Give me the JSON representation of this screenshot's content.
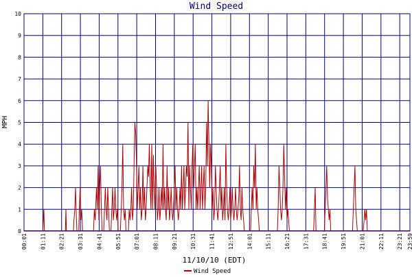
{
  "chart_data": {
    "type": "line",
    "title": "Wind Speed",
    "xlabel": "11/10/10 (EDT)",
    "ylabel": "MPH",
    "ylim": [
      0,
      10
    ],
    "yticks": [
      "0",
      "1",
      "2",
      "3",
      "4",
      "5",
      "6",
      "7",
      "8",
      "9",
      "10"
    ],
    "xticks": [
      "00:01",
      "01:11",
      "02:21",
      "03:31",
      "04:41",
      "05:51",
      "07:01",
      "08:11",
      "09:21",
      "10:31",
      "11:41",
      "12:51",
      "14:01",
      "15:11",
      "16:21",
      "17:31",
      "18:41",
      "19:51",
      "21:01",
      "22:11",
      "23:21",
      "23:59"
    ],
    "grid": true,
    "legend_position": "bottom-center",
    "series": [
      {
        "name": "Wind Speed",
        "color": "#b00000",
        "points": [
          [
            "01:11",
            0
          ],
          [
            "01:13",
            0.5
          ],
          [
            "01:15",
            1
          ],
          [
            "01:17",
            0
          ],
          [
            "02:35",
            0
          ],
          [
            "02:37",
            1
          ],
          [
            "02:39",
            0
          ],
          [
            "03:05",
            0
          ],
          [
            "03:07",
            0.5
          ],
          [
            "03:10",
            1
          ],
          [
            "03:13",
            2
          ],
          [
            "03:15",
            1
          ],
          [
            "03:18",
            0
          ],
          [
            "03:25",
            0
          ],
          [
            "03:27",
            1
          ],
          [
            "03:30",
            2
          ],
          [
            "03:33",
            0.5
          ],
          [
            "03:36",
            1
          ],
          [
            "03:39",
            0
          ],
          [
            "04:20",
            0
          ],
          [
            "04:23",
            1
          ],
          [
            "04:26",
            0.5
          ],
          [
            "04:28",
            1
          ],
          [
            "04:31",
            2
          ],
          [
            "04:34",
            1
          ],
          [
            "04:37",
            3
          ],
          [
            "04:40",
            0.5
          ],
          [
            "04:43",
            2
          ],
          [
            "04:46",
            3
          ],
          [
            "04:49",
            1
          ],
          [
            "04:52",
            0
          ],
          [
            "04:58",
            0
          ],
          [
            "05:01",
            1
          ],
          [
            "05:04",
            2
          ],
          [
            "05:07",
            1
          ],
          [
            "05:10",
            0.5
          ],
          [
            "05:13",
            2
          ],
          [
            "05:16",
            1
          ],
          [
            "05:19",
            0
          ],
          [
            "05:25",
            0
          ],
          [
            "05:28",
            1
          ],
          [
            "05:31",
            2
          ],
          [
            "05:34",
            0.5
          ],
          [
            "05:37",
            1
          ],
          [
            "05:40",
            2
          ],
          [
            "05:43",
            1
          ],
          [
            "05:46",
            0.5
          ],
          [
            "05:49",
            1
          ],
          [
            "05:52",
            0
          ],
          [
            "06:00",
            0
          ],
          [
            "06:03",
            1
          ],
          [
            "06:06",
            2
          ],
          [
            "06:09",
            4
          ],
          [
            "06:12",
            1
          ],
          [
            "06:15",
            0.5
          ],
          [
            "06:18",
            1
          ],
          [
            "06:21",
            0
          ],
          [
            "06:30",
            0
          ],
          [
            "06:33",
            1
          ],
          [
            "06:36",
            0.5
          ],
          [
            "06:39",
            1
          ],
          [
            "06:42",
            2
          ],
          [
            "06:45",
            0.5
          ],
          [
            "06:48",
            1
          ],
          [
            "06:51",
            3
          ],
          [
            "06:54",
            5
          ],
          [
            "06:57",
            4.5
          ],
          [
            "07:00",
            3
          ],
          [
            "07:03",
            1
          ],
          [
            "07:06",
            2
          ],
          [
            "07:09",
            3
          ],
          [
            "07:12",
            1
          ],
          [
            "07:15",
            2
          ],
          [
            "07:18",
            0.5
          ],
          [
            "07:21",
            1
          ],
          [
            "07:24",
            3
          ],
          [
            "07:27",
            1
          ],
          [
            "07:30",
            2
          ],
          [
            "07:33",
            0.5
          ],
          [
            "07:36",
            1
          ],
          [
            "07:39",
            2
          ],
          [
            "07:42",
            3
          ],
          [
            "07:45",
            2.5
          ],
          [
            "07:48",
            4
          ],
          [
            "07:51",
            2
          ],
          [
            "07:54",
            1
          ],
          [
            "07:57",
            4
          ],
          [
            "08:00",
            1
          ],
          [
            "08:03",
            3.5
          ],
          [
            "08:06",
            2
          ],
          [
            "08:09",
            1
          ],
          [
            "08:12",
            3
          ],
          [
            "08:15",
            2
          ],
          [
            "08:18",
            0.5
          ],
          [
            "08:21",
            1
          ],
          [
            "08:24",
            2
          ],
          [
            "08:27",
            0.5
          ],
          [
            "08:30",
            1
          ],
          [
            "08:33",
            2
          ],
          [
            "08:36",
            1
          ],
          [
            "08:39",
            4
          ],
          [
            "08:42",
            1
          ],
          [
            "08:45",
            2
          ],
          [
            "08:48",
            1
          ],
          [
            "08:51",
            0.5
          ],
          [
            "08:54",
            3
          ],
          [
            "08:57",
            1
          ],
          [
            "09:00",
            2
          ],
          [
            "09:03",
            0.5
          ],
          [
            "09:06",
            1
          ],
          [
            "09:09",
            2
          ],
          [
            "09:12",
            1
          ],
          [
            "09:15",
            0.5
          ],
          [
            "09:18",
            1
          ],
          [
            "09:21",
            2
          ],
          [
            "09:24",
            3
          ],
          [
            "09:27",
            1
          ],
          [
            "09:30",
            2
          ],
          [
            "09:33",
            1
          ],
          [
            "09:36",
            0.5
          ],
          [
            "09:39",
            1
          ],
          [
            "09:42",
            2
          ],
          [
            "09:45",
            1
          ],
          [
            "09:48",
            3
          ],
          [
            "09:51",
            1
          ],
          [
            "09:54",
            2
          ],
          [
            "09:57",
            3
          ],
          [
            "10:00",
            1
          ],
          [
            "10:03",
            2
          ],
          [
            "10:06",
            3
          ],
          [
            "10:09",
            2.5
          ],
          [
            "10:12",
            5
          ],
          [
            "10:15",
            1
          ],
          [
            "10:18",
            3
          ],
          [
            "10:21",
            2
          ],
          [
            "10:24",
            1
          ],
          [
            "10:27",
            3
          ],
          [
            "10:30",
            4
          ],
          [
            "10:33",
            2
          ],
          [
            "10:36",
            3
          ],
          [
            "10:39",
            4
          ],
          [
            "10:42",
            1
          ],
          [
            "10:45",
            2
          ],
          [
            "10:48",
            1
          ],
          [
            "10:51",
            2
          ],
          [
            "10:54",
            3
          ],
          [
            "10:57",
            1
          ],
          [
            "11:00",
            2
          ],
          [
            "11:03",
            3
          ],
          [
            "11:06",
            1
          ],
          [
            "11:09",
            2
          ],
          [
            "11:12",
            3
          ],
          [
            "11:15",
            1
          ],
          [
            "11:18",
            2
          ],
          [
            "11:21",
            5
          ],
          [
            "11:24",
            3
          ],
          [
            "11:27",
            6
          ],
          [
            "11:30",
            4
          ],
          [
            "11:33",
            2
          ],
          [
            "11:36",
            4
          ],
          [
            "11:39",
            3
          ],
          [
            "11:42",
            1
          ],
          [
            "11:45",
            2
          ],
          [
            "11:48",
            0.5
          ],
          [
            "11:51",
            1
          ],
          [
            "11:54",
            3
          ],
          [
            "11:57",
            2
          ],
          [
            "12:00",
            1
          ],
          [
            "12:03",
            0.5
          ],
          [
            "12:06",
            1
          ],
          [
            "12:09",
            2
          ],
          [
            "12:12",
            3
          ],
          [
            "12:15",
            1
          ],
          [
            "12:18",
            2
          ],
          [
            "12:21",
            0.5
          ],
          [
            "12:24",
            1
          ],
          [
            "12:27",
            2
          ],
          [
            "12:30",
            0.5
          ],
          [
            "12:33",
            4
          ],
          [
            "12:36",
            2
          ],
          [
            "12:39",
            1
          ],
          [
            "12:42",
            0.5
          ],
          [
            "12:45",
            1
          ],
          [
            "12:48",
            2
          ],
          [
            "12:51",
            0.5
          ],
          [
            "12:54",
            1
          ],
          [
            "12:57",
            2
          ],
          [
            "13:00",
            1
          ],
          [
            "13:03",
            0.5
          ],
          [
            "13:06",
            1
          ],
          [
            "13:09",
            2
          ],
          [
            "13:12",
            1
          ],
          [
            "13:15",
            0.5
          ],
          [
            "13:18",
            1
          ],
          [
            "13:21",
            1.5
          ],
          [
            "13:24",
            3
          ],
          [
            "13:27",
            1
          ],
          [
            "13:30",
            0.5
          ],
          [
            "13:33",
            2
          ],
          [
            "13:36",
            1
          ],
          [
            "13:39",
            0.5
          ],
          [
            "13:42",
            0
          ],
          [
            "14:05",
            0
          ],
          [
            "14:08",
            1
          ],
          [
            "14:11",
            2
          ],
          [
            "14:14",
            1
          ],
          [
            "14:17",
            3
          ],
          [
            "14:20",
            2
          ],
          [
            "14:23",
            4
          ],
          [
            "14:26",
            1
          ],
          [
            "14:29",
            2
          ],
          [
            "14:32",
            1
          ],
          [
            "14:35",
            0.5
          ],
          [
            "14:38",
            0
          ],
          [
            "15:45",
            0
          ],
          [
            "15:48",
            1
          ],
          [
            "15:51",
            3
          ],
          [
            "15:54",
            2
          ],
          [
            "15:57",
            1
          ],
          [
            "16:00",
            0.5
          ],
          [
            "16:03",
            1
          ],
          [
            "16:06",
            2
          ],
          [
            "16:09",
            4
          ],
          [
            "16:12",
            2.5
          ],
          [
            "16:15",
            1
          ],
          [
            "16:18",
            2
          ],
          [
            "16:21",
            0.5
          ],
          [
            "16:24",
            1
          ],
          [
            "16:27",
            0.5
          ],
          [
            "16:30",
            0
          ],
          [
            "18:00",
            0
          ],
          [
            "18:03",
            1
          ],
          [
            "18:06",
            2
          ],
          [
            "18:09",
            0
          ],
          [
            "18:40",
            0
          ],
          [
            "18:43",
            1
          ],
          [
            "18:46",
            2
          ],
          [
            "18:49",
            3
          ],
          [
            "18:52",
            1.5
          ],
          [
            "18:55",
            1
          ],
          [
            "18:58",
            0.5
          ],
          [
            "19:01",
            1
          ],
          [
            "19:04",
            0
          ],
          [
            "20:25",
            0
          ],
          [
            "20:28",
            1
          ],
          [
            "20:31",
            2
          ],
          [
            "20:34",
            3
          ],
          [
            "20:37",
            1
          ],
          [
            "20:40",
            0.5
          ],
          [
            "20:43",
            0
          ],
          [
            "21:05",
            0
          ],
          [
            "21:08",
            0.5
          ],
          [
            "21:11",
            1
          ],
          [
            "21:14",
            0.5
          ],
          [
            "21:17",
            1
          ],
          [
            "21:20",
            0
          ]
        ]
      }
    ]
  }
}
